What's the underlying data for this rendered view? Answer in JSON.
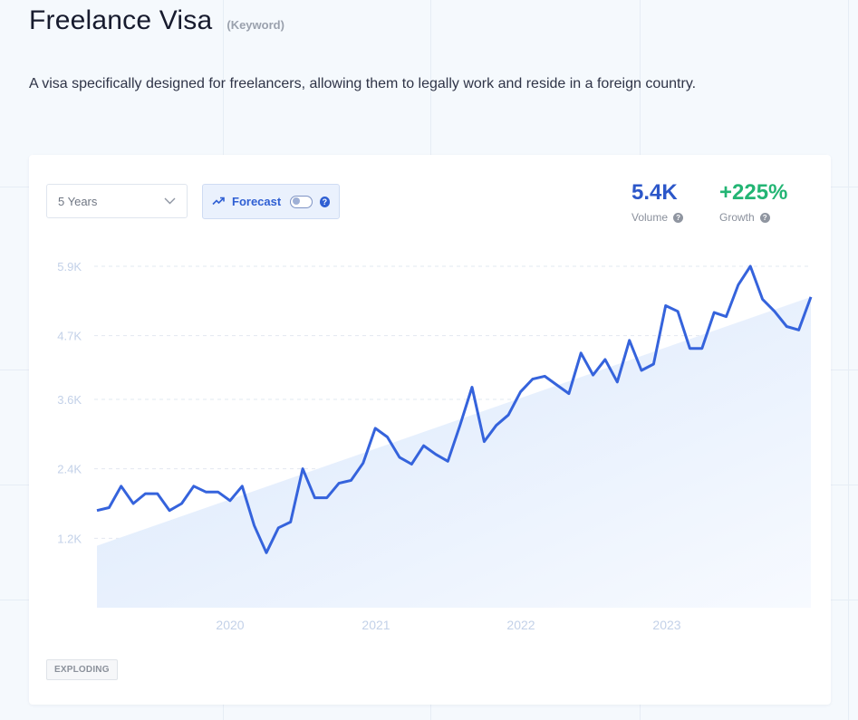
{
  "header": {
    "title": "Freelance Visa",
    "tag": "(Keyword)",
    "description": "A visa specifically designed for freelancers, allowing them to legally work and reside in a foreign country."
  },
  "controls": {
    "range_select": "5 Years",
    "forecast_label": "Forecast",
    "forecast_enabled": false
  },
  "metrics": {
    "volume": {
      "value": "5.4K",
      "label": "Volume"
    },
    "growth": {
      "value": "+225%",
      "label": "Growth"
    }
  },
  "badge": "EXPLODING",
  "colors": {
    "line": "#3563dc",
    "area": "#dbe8fb",
    "growth": "#23b574",
    "volume": "#2c57c9"
  },
  "chart_data": {
    "type": "line",
    "title": "",
    "xlabel": "",
    "ylabel": "",
    "y_ticks": [
      "1.2K",
      "2.4K",
      "3.6K",
      "4.7K",
      "5.9K"
    ],
    "y_tick_values": [
      1200,
      2400,
      3600,
      4700,
      5900
    ],
    "x_ticks": [
      "2020",
      "2021",
      "2022",
      "2023"
    ],
    "ylim": [
      0,
      5900
    ],
    "grid": true,
    "series": [
      {
        "type": "line",
        "values": [
          1680,
          1730,
          2100,
          1800,
          1970,
          1970,
          1680,
          1800,
          2100,
          2000,
          2000,
          1850,
          2100,
          1420,
          950,
          1380,
          1480,
          2400,
          1900,
          1900,
          2150,
          2200,
          2500,
          3100,
          2950,
          2600,
          2480,
          2800,
          2650,
          2530,
          3150,
          3810,
          2870,
          3150,
          3330,
          3730,
          3950,
          4000,
          3850,
          3700,
          4400,
          4020,
          4290,
          3900,
          4620,
          4100,
          4210,
          5220,
          5120,
          4480,
          4480,
          5100,
          5030,
          5580,
          5900,
          5330,
          5120,
          4860,
          4800,
          5370
        ]
      },
      {
        "type": "area",
        "values": [
          1070,
          5370
        ]
      }
    ]
  }
}
